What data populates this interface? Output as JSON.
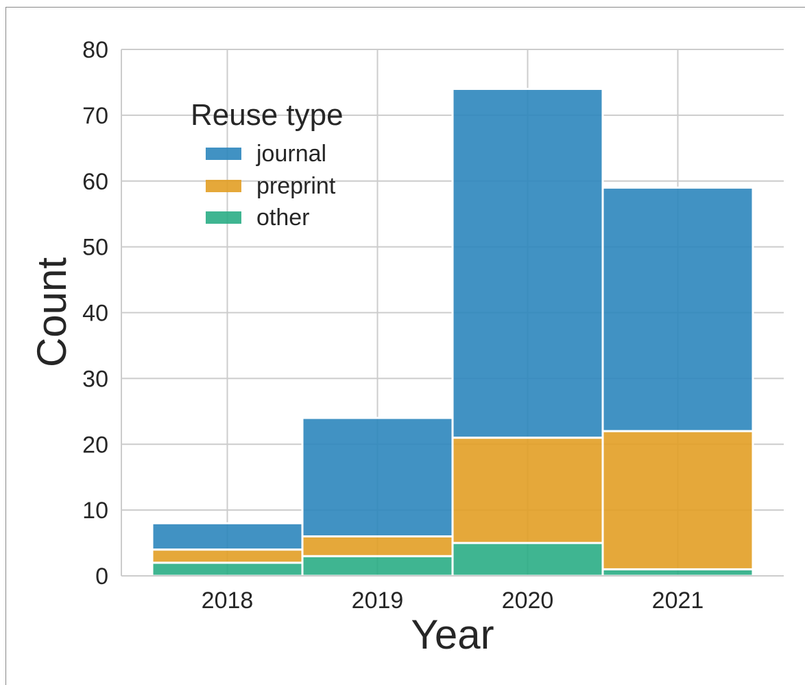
{
  "chart_data": {
    "type": "bar",
    "stacked": true,
    "xlabel": "Year",
    "ylabel": "Count",
    "categories": [
      "2018",
      "2019",
      "2020",
      "2021"
    ],
    "series": [
      {
        "name": "other",
        "values": [
          2,
          3,
          5,
          1
        ],
        "color": "#2aad85"
      },
      {
        "name": "preprint",
        "values": [
          2,
          3,
          16,
          21
        ],
        "color": "#e29e25"
      },
      {
        "name": "journal",
        "values": [
          4,
          18,
          53,
          37
        ],
        "color": "#2c86bd"
      }
    ],
    "ylim": [
      0,
      80
    ],
    "yticks": [
      0,
      10,
      20,
      30,
      40,
      50,
      60,
      70,
      80
    ],
    "grid": true,
    "legend": {
      "title": "Reuse type",
      "placement": "top-left",
      "entries": [
        "journal",
        "preprint",
        "other"
      ]
    }
  }
}
